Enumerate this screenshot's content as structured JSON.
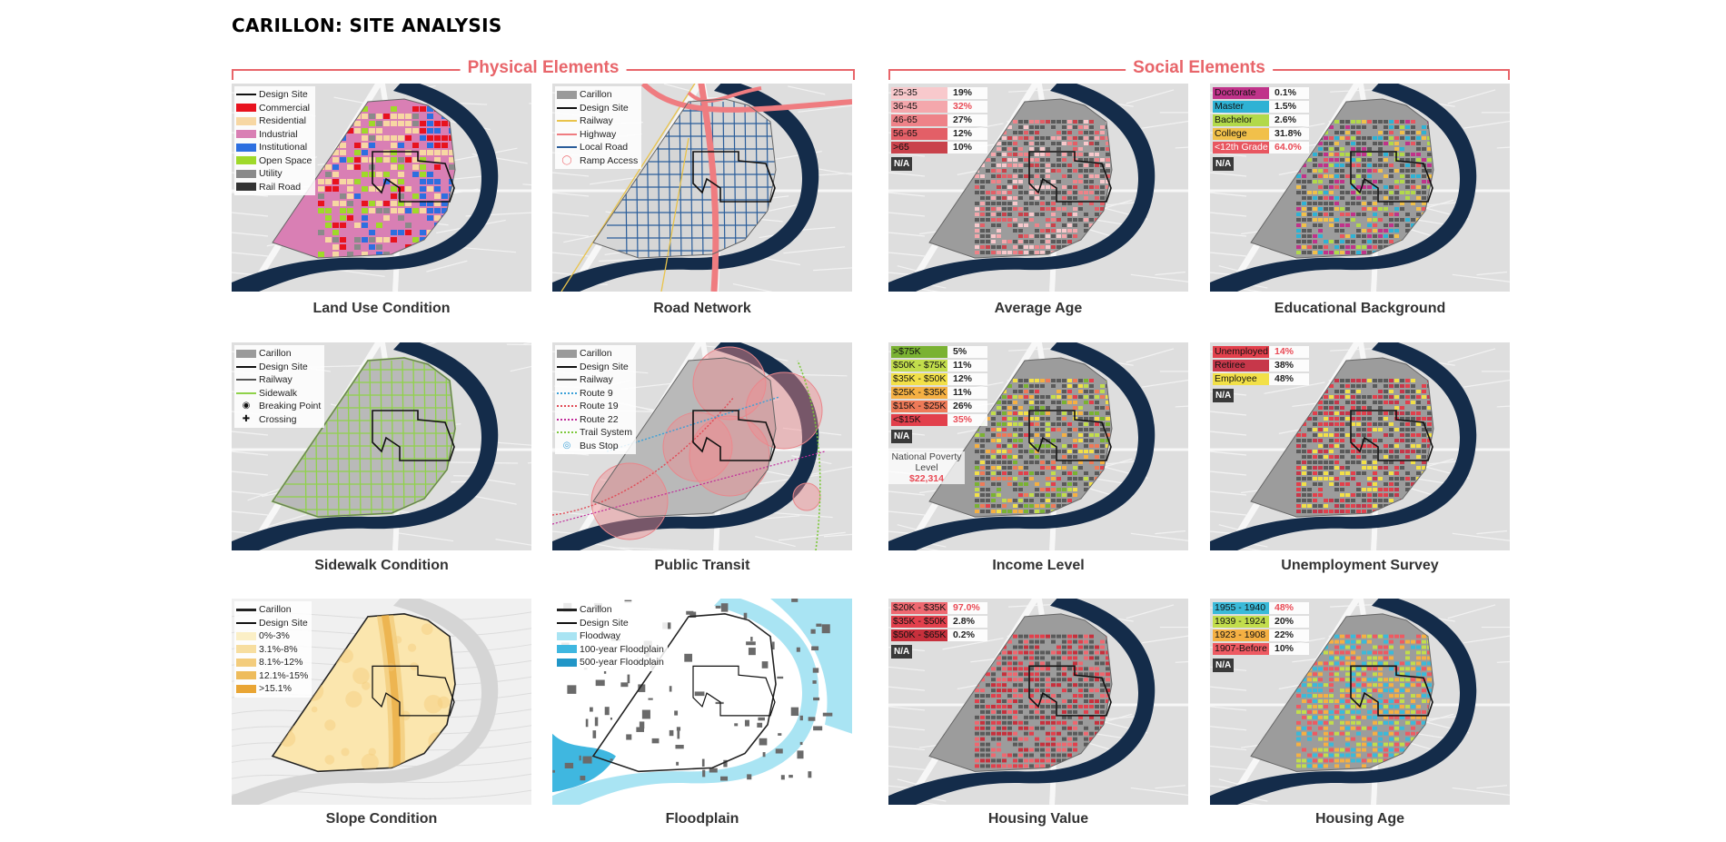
{
  "title": "CARILLON: SITE ANALYSIS",
  "sections": {
    "physical": "Physical Elements",
    "social": "Social Elements"
  },
  "panels": {
    "land_use": {
      "caption": "Land Use Condition",
      "legend": [
        {
          "label": "Design Site",
          "color": "#111111",
          "kind": "line"
        },
        {
          "label": "Commercial",
          "color": "#e8121e",
          "kind": "box"
        },
        {
          "label": "Residential",
          "color": "#f7d7a3",
          "kind": "box"
        },
        {
          "label": "Industrial",
          "color": "#d97fb4",
          "kind": "box"
        },
        {
          "label": "Institutional",
          "color": "#2d6fe0",
          "kind": "box"
        },
        {
          "label": "Open Space",
          "color": "#9fd92a",
          "kind": "box"
        },
        {
          "label": "Utility",
          "color": "#8a8a8a",
          "kind": "box"
        },
        {
          "label": "Rail Road",
          "color": "#333333",
          "kind": "box"
        }
      ]
    },
    "road": {
      "caption": "Road Network",
      "legend": [
        {
          "label": "Carillon",
          "color": "#9a9a9a",
          "kind": "box"
        },
        {
          "label": "Design Site",
          "color": "#111111",
          "kind": "line"
        },
        {
          "label": "Railway",
          "color": "#e9c34a",
          "kind": "line"
        },
        {
          "label": "Highway",
          "color": "#ef7c80",
          "kind": "line"
        },
        {
          "label": "Local Road",
          "color": "#2a5d9a",
          "kind": "line"
        },
        {
          "label": "Ramp Access",
          "color": "#ef6b6f",
          "kind": "ring"
        }
      ]
    },
    "sidewalk": {
      "caption": "Sidewalk Condition",
      "legend": [
        {
          "label": "Carillon",
          "color": "#9a9a9a",
          "kind": "box"
        },
        {
          "label": "Design Site",
          "color": "#111111",
          "kind": "line"
        },
        {
          "label": "Railway",
          "color": "#555555",
          "kind": "line"
        },
        {
          "label": "Sidewalk",
          "color": "#8fd24a",
          "kind": "line"
        },
        {
          "label": "Breaking Point",
          "color": "#111111",
          "kind": "dot"
        },
        {
          "label": "Crossing",
          "color": "#111111",
          "kind": "cross"
        }
      ]
    },
    "transit": {
      "caption": "Public Transit",
      "legend": [
        {
          "label": "Carillon",
          "color": "#9a9a9a",
          "kind": "box"
        },
        {
          "label": "Design Site",
          "color": "#111111",
          "kind": "line"
        },
        {
          "label": "Railway",
          "color": "#555555",
          "kind": "line"
        },
        {
          "label": "Route 9",
          "color": "#3aa0d8",
          "kind": "dash"
        },
        {
          "label": "Route 19",
          "color": "#e04a55",
          "kind": "dash"
        },
        {
          "label": "Route 22",
          "color": "#c02a9a",
          "kind": "dash"
        },
        {
          "label": "Trail System",
          "color": "#7cc83a",
          "kind": "dash"
        },
        {
          "label": "Bus Stop",
          "color": "#3aa0d8",
          "kind": "bus"
        }
      ]
    },
    "slope": {
      "caption": "Slope Condition",
      "legend": [
        {
          "label": "Carillon",
          "color": "#222222",
          "kind": "thick"
        },
        {
          "label": "Design Site",
          "color": "#111111",
          "kind": "line"
        },
        {
          "label": "0%-3%",
          "color": "#fbefc6",
          "kind": "box"
        },
        {
          "label": "3.1%-8%",
          "color": "#f7dea0",
          "kind": "box"
        },
        {
          "label": "8.1%-12%",
          "color": "#f3cc7c",
          "kind": "box"
        },
        {
          "label": "12.1%-15%",
          "color": "#eebc5c",
          "kind": "box"
        },
        {
          "label": ">15.1%",
          "color": "#e9a534",
          "kind": "box"
        }
      ]
    },
    "flood": {
      "caption": "Floodplain",
      "legend": [
        {
          "label": "Carillon",
          "color": "#222222",
          "kind": "thick"
        },
        {
          "label": "Design Site",
          "color": "#111111",
          "kind": "line"
        },
        {
          "label": "Floodway",
          "color": "#a9e4f3",
          "kind": "box"
        },
        {
          "label": "100-year Floodplain",
          "color": "#3fb7e0",
          "kind": "box"
        },
        {
          "label": "500-year Floodplain",
          "color": "#2196c7",
          "kind": "box"
        }
      ]
    },
    "age": {
      "caption": "Average Age",
      "na": "N/A",
      "stats": [
        {
          "label": "25-35",
          "value": "19%",
          "color": "#f8c9cc",
          "hl": false
        },
        {
          "label": "36-45",
          "value": "32%",
          "color": "#f4a7ac",
          "hl": true
        },
        {
          "label": "46-65",
          "value": "27%",
          "color": "#ee8288",
          "hl": false
        },
        {
          "label": "56-65",
          "value": "12%",
          "color": "#e35f67",
          "hl": false
        },
        {
          ">": "",
          "label": ">65",
          "value": "10%",
          "color": "#c9424b",
          "hl": false
        }
      ]
    },
    "edu": {
      "caption": "Educational Background",
      "na": "N/A",
      "stats": [
        {
          "label": "Doctorate",
          "value": "0.1%",
          "color": "#c0338a",
          "hl": false
        },
        {
          "label": "Master",
          "value": "1.5%",
          "color": "#2fb2d4",
          "hl": false
        },
        {
          "label": "Bachelor",
          "value": "2.6%",
          "color": "#b2d94a",
          "hl": false
        },
        {
          "label": "College",
          "value": "31.8%",
          "color": "#f1c04a",
          "hl": false
        },
        {
          "label": "<12th Grade",
          "value": "64.0%",
          "color": "#e85660",
          "hl": true
        }
      ]
    },
    "income": {
      "caption": "Income Level",
      "na": "N/A",
      "poverty_label": "National Poverty Level",
      "poverty_value": "$22,314",
      "stats": [
        {
          "label": ">$75K",
          "value": "5%",
          "color": "#7ab233",
          "hl": false
        },
        {
          "label": "$50K - $75K",
          "value": "11%",
          "color": "#c2dd4c",
          "hl": false
        },
        {
          "label": "$35K - $50K",
          "value": "12%",
          "color": "#f2e048",
          "hl": false
        },
        {
          "label": "$25K - $35K",
          "value": "11%",
          "color": "#f5b043",
          "hl": false
        },
        {
          "label": "$15K - $25K",
          "value": "26%",
          "color": "#ee7a58",
          "hl": false
        },
        {
          "label": "<$15K",
          "value": "35%",
          "color": "#e2404c",
          "hl": true
        }
      ]
    },
    "unemp": {
      "caption": "Unemployment Survey",
      "na": "N/A",
      "stats": [
        {
          "label": "Unemployed",
          "value": "14%",
          "color": "#e2404c",
          "hl": true
        },
        {
          "label": "Retiree",
          "value": "38%",
          "color": "#c7374a",
          "hl": false
        },
        {
          "label": "Employee",
          "value": "48%",
          "color": "#f2e048",
          "hl": false
        }
      ]
    },
    "hvalue": {
      "caption": "Housing Value",
      "na": "N/A",
      "stats": [
        {
          "label": "$20K - $35K",
          "value": "97.0%",
          "color": "#ee6870",
          "hl": true
        },
        {
          "label": "$35K - $50K",
          "value": "2.8%",
          "color": "#e2404c",
          "hl": false
        },
        {
          "label": "$50K - $65K",
          "value": "0.2%",
          "color": "#c7303c",
          "hl": false
        }
      ]
    },
    "hage": {
      "caption": "Housing Age",
      "na": "N/A",
      "stats": [
        {
          "label": "1955 - 1940",
          "value": "48%",
          "color": "#3bbad9",
          "hl": true
        },
        {
          "label": "1939 - 1924",
          "value": "20%",
          "color": "#c2dd4c",
          "hl": false
        },
        {
          "label": "1923 - 1908",
          "value": "22%",
          "color": "#f5b043",
          "hl": false
        },
        {
          "label": "1907-Before",
          "value": "10%",
          "color": "#ee5a62",
          "hl": false
        }
      ]
    }
  }
}
